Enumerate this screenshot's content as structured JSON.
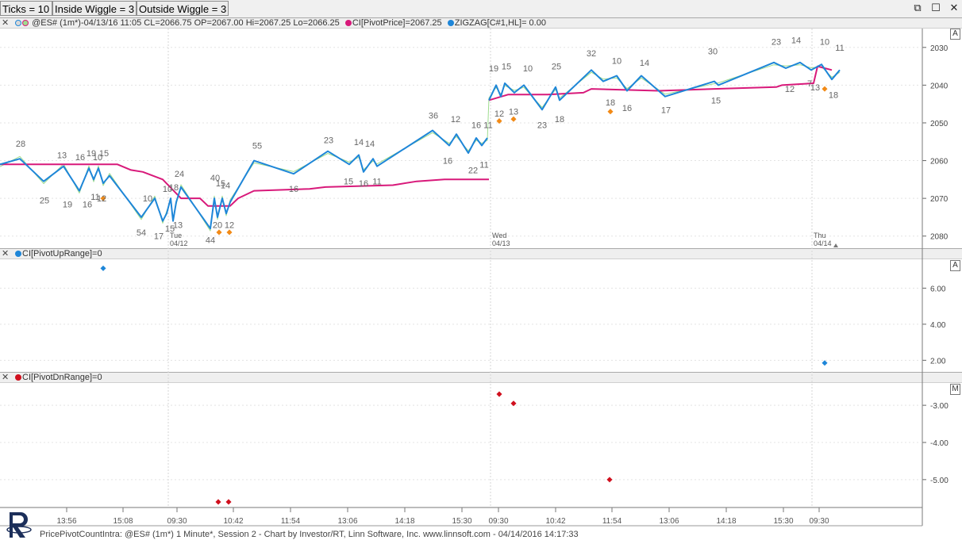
{
  "toolbar": {
    "ticks": "Ticks = 10",
    "inside_wiggle": "Inside Wiggle = 3",
    "outside_wiggle": "Outside Wiggle = 3"
  },
  "window_controls": {
    "restore": "⧉",
    "maximize": "☐",
    "close": "✕"
  },
  "price_pane": {
    "close_glyph": "✕",
    "symbol_info": "@ES# (1m*)-04/13/16 11:05 CL=2066.75 OP=2067.00 Hi=2067.25 Lo=2066.25",
    "pivot_price_label": "CI[PivotPrice]=2067.25",
    "zigzag_label": "ZIGZAG[C#1,HL]= 0.00",
    "scale_badge": "A",
    "y_ticks": [
      "2080",
      "2070",
      "2060",
      "2050",
      "2040",
      "2030"
    ],
    "day_labels": [
      {
        "day": "Tue",
        "date": "04/12"
      },
      {
        "day": "Wed",
        "date": "04/13"
      },
      {
        "day": "Thu",
        "date": "04/14"
      }
    ],
    "colors": {
      "zigzag": "#1e86d8",
      "pivot": "#d8197a",
      "price": "#9edc8e",
      "marker": "#f28a16"
    }
  },
  "pivot_up_pane": {
    "close_glyph": "✕",
    "label": "CI[PivotUpRange]=0",
    "scale_badge": "A",
    "y_ticks": [
      "6.00",
      "4.00",
      "2.00"
    ],
    "color": "#1e86d8"
  },
  "pivot_dn_pane": {
    "close_glyph": "✕",
    "label": "CI[PivotDnRange]=0",
    "scale_badge": "M",
    "y_ticks": [
      "-3.00",
      "-4.00",
      "-5.00"
    ],
    "color": "#d0101e"
  },
  "time_axis": [
    "13:56",
    "15:08",
    "09:30",
    "10:42",
    "11:54",
    "13:06",
    "14:18",
    "15:30",
    "09:30",
    "10:42",
    "11:54",
    "13:06",
    "14:18",
    "15:30",
    "09:30"
  ],
  "footer": "PricePivotCountIntra: @ES# (1m*) 1 Minute*, Session 2 - Chart by Investor/RT, Linn Software, Inc. www.linnsoft.com - 04/14/2016 14:17:33",
  "chart_data": [
    {
      "type": "line",
      "title": "@ES# (1m*)",
      "ylim": [
        2027,
        2085
      ],
      "ticks": [
        2030,
        2040,
        2050,
        2060,
        2070,
        2080
      ],
      "series": [
        {
          "name": "ZIGZAG[C#1,HL]",
          "points": [
            [
              0,
              2049
            ],
            [
              25,
              2050.5
            ],
            [
              55,
              2044.5
            ],
            [
              80,
              2048.5
            ],
            [
              100,
              2042
            ],
            [
              112,
              2048
            ],
            [
              118,
              2045
            ],
            [
              124,
              2048
            ],
            [
              130,
              2044
            ],
            [
              138,
              2046
            ],
            [
              178,
              2035
            ],
            [
              195,
              2040
            ],
            [
              205,
              2034
            ],
            [
              210,
              2036
            ],
            [
              215,
              2040
            ],
            [
              218,
              2034
            ],
            [
              222,
              2039
            ],
            [
              228,
              2043
            ],
            [
              265,
              2032
            ],
            [
              270,
              2040
            ],
            [
              274,
              2035
            ],
            [
              280,
              2040
            ],
            [
              285,
              2036
            ],
            [
              290,
              2039
            ],
            [
              320,
              2050
            ],
            [
              370,
              2046.5
            ],
            [
              413,
              2052.5
            ],
            [
              440,
              2049
            ],
            [
              452,
              2051.5
            ],
            [
              458,
              2047
            ],
            [
              470,
              2050.5
            ],
            [
              475,
              2048.5
            ],
            [
              545,
              2058
            ],
            [
              566,
              2054
            ],
            [
              575,
              2057
            ],
            [
              590,
              2052
            ],
            [
              600,
              2056
            ],
            [
              607,
              2054
            ],
            [
              614,
              2056
            ],
            [
              616,
              2066
            ],
            [
              625,
              2070
            ],
            [
              631,
              2067
            ],
            [
              636,
              2070.5
            ],
            [
              648,
              2068
            ],
            [
              660,
              2070
            ],
            [
              683,
              2063.5
            ],
            [
              700,
              2069.5
            ],
            [
              705,
              2066
            ],
            [
              745,
              2074
            ],
            [
              760,
              2071
            ],
            [
              777,
              2072.5
            ],
            [
              790,
              2068.5
            ],
            [
              808,
              2072.5
            ],
            [
              838,
              2067
            ],
            [
              900,
              2071
            ],
            [
              905,
              2070
            ],
            [
              975,
              2076
            ],
            [
              990,
              2074.5
            ],
            [
              1008,
              2076
            ],
            [
              1022,
              2074
            ],
            [
              1035,
              2075.5
            ],
            [
              1048,
              2071.5
            ],
            [
              1058,
              2074
            ]
          ]
        },
        {
          "name": "CI[PivotPrice]",
          "points": [
            [
              0,
              2049
            ],
            [
              148,
              2049
            ],
            [
              165,
              2047.5
            ],
            [
              180,
              2047
            ],
            [
              205,
              2045
            ],
            [
              228,
              2040
            ],
            [
              252,
              2040
            ],
            [
              262,
              2038
            ],
            [
              290,
              2038
            ],
            [
              300,
              2040
            ],
            [
              320,
              2042
            ],
            [
              390,
              2042.5
            ],
            [
              410,
              2043
            ],
            [
              495,
              2043.5
            ],
            [
              525,
              2044.5
            ],
            [
              560,
              2045
            ],
            [
              616,
              2045
            ],
            [
              616,
              2066
            ],
            [
              640,
              2067.5
            ],
            [
              690,
              2067.5
            ],
            [
              735,
              2068
            ],
            [
              745,
              2069
            ],
            [
              830,
              2068.5
            ],
            [
              900,
              2069
            ],
            [
              978,
              2069.5
            ],
            [
              985,
              2070
            ],
            [
              1025,
              2070.5
            ],
            [
              1030,
              2075
            ],
            [
              1048,
              2074
            ]
          ]
        }
      ],
      "point_labels": [
        {
          "t": "28",
          "x": 26,
          "y": 2054.5
        },
        {
          "t": "25",
          "x": 56,
          "y": 2039.5
        },
        {
          "t": "13",
          "x": 78,
          "y": 2051.5
        },
        {
          "t": "19",
          "x": 85,
          "y": 2038.5
        },
        {
          "t": "16",
          "x": 101,
          "y": 2051
        },
        {
          "t": "16",
          "x": 110,
          "y": 2038.5
        },
        {
          "t": "19",
          "x": 115,
          "y": 2052
        },
        {
          "t": "10",
          "x": 123,
          "y": 2051
        },
        {
          "t": "15",
          "x": 131,
          "y": 2052
        },
        {
          "t": "11",
          "x": 120,
          "y": 2040.5
        },
        {
          "t": "12",
          "x": 128,
          "y": 2040
        },
        {
          "t": "10",
          "x": 186,
          "y": 2040
        },
        {
          "t": "54",
          "x": 178,
          "y": 2031
        },
        {
          "t": "17",
          "x": 200,
          "y": 2030
        },
        {
          "t": "10",
          "x": 211,
          "y": 2042.5
        },
        {
          "t": "18",
          "x": 219,
          "y": 2043
        },
        {
          "t": "24",
          "x": 226,
          "y": 2046.5
        },
        {
          "t": "15",
          "x": 214,
          "y": 2032
        },
        {
          "t": "13",
          "x": 224,
          "y": 2033
        },
        {
          "t": "40",
          "x": 271,
          "y": 2045.5
        },
        {
          "t": "15",
          "x": 278,
          "y": 2044
        },
        {
          "t": "14",
          "x": 284,
          "y": 2043.5
        },
        {
          "t": "44",
          "x": 265,
          "y": 2029
        },
        {
          "t": "20",
          "x": 274,
          "y": 2033
        },
        {
          "t": "12",
          "x": 289,
          "y": 2033
        },
        {
          "t": "55",
          "x": 324,
          "y": 2054
        },
        {
          "t": "16",
          "x": 370,
          "y": 2042.5
        },
        {
          "t": "23",
          "x": 414,
          "y": 2055.5
        },
        {
          "t": "15",
          "x": 439,
          "y": 2044.5
        },
        {
          "t": "14",
          "x": 452,
          "y": 2055
        },
        {
          "t": "16",
          "x": 458,
          "y": 2044
        },
        {
          "t": "14",
          "x": 466,
          "y": 2054.5
        },
        {
          "t": "11",
          "x": 475,
          "y": 2044.5
        },
        {
          "t": "36",
          "x": 546,
          "y": 2062
        },
        {
          "t": "16",
          "x": 564,
          "y": 2050
        },
        {
          "t": "12",
          "x": 574,
          "y": 2061
        },
        {
          "t": "22",
          "x": 596,
          "y": 2047.5
        },
        {
          "t": "16",
          "x": 600,
          "y": 2059.5
        },
        {
          "t": "11",
          "x": 610,
          "y": 2049
        },
        {
          "t": "11",
          "x": 615,
          "y": 2059.5
        },
        {
          "t": "19",
          "x": 622,
          "y": 2074.5
        },
        {
          "t": "15",
          "x": 638,
          "y": 2075
        },
        {
          "t": "12",
          "x": 629,
          "y": 2062.5
        },
        {
          "t": "13",
          "x": 647,
          "y": 2063
        },
        {
          "t": "10",
          "x": 665,
          "y": 2074.5
        },
        {
          "t": "23",
          "x": 683,
          "y": 2059.5
        },
        {
          "t": "25",
          "x": 701,
          "y": 2075
        },
        {
          "t": "18",
          "x": 705,
          "y": 2061
        },
        {
          "t": "32",
          "x": 745,
          "y": 2078.5
        },
        {
          "t": "10",
          "x": 777,
          "y": 2076.5
        },
        {
          "t": "18",
          "x": 769,
          "y": 2065.5
        },
        {
          "t": "16",
          "x": 790,
          "y": 2064
        },
        {
          "t": "14",
          "x": 812,
          "y": 2076
        },
        {
          "t": "17",
          "x": 839,
          "y": 2063.5
        },
        {
          "t": "30",
          "x": 898,
          "y": 2079
        },
        {
          "t": "15",
          "x": 902,
          "y": 2066
        },
        {
          "t": "23",
          "x": 978,
          "y": 2081.5
        },
        {
          "t": "14",
          "x": 1003,
          "y": 2082
        },
        {
          "t": "12",
          "x": 995,
          "y": 2069
        },
        {
          "t": "10",
          "x": 1039,
          "y": 2081.5
        },
        {
          "t": "7",
          "x": 1020,
          "y": 2070.5
        },
        {
          "t": "13",
          "x": 1027,
          "y": 2069.5
        },
        {
          "t": "11",
          "x": 1058,
          "y": 2080
        },
        {
          "t": "18",
          "x": 1050,
          "y": 2067.5
        }
      ],
      "markers": [
        [
          130,
          2040
        ],
        [
          276,
          2031
        ],
        [
          289,
          2031
        ],
        [
          629,
          2060.5
        ],
        [
          647,
          2061
        ],
        [
          769,
          2063
        ],
        [
          1039,
          2069
        ]
      ]
    },
    {
      "type": "scatter",
      "title": "CI[PivotUpRange]",
      "ylim": [
        1.4,
        7.6
      ],
      "ticks": [
        6.0,
        4.0,
        2.0
      ],
      "points": [
        [
          130,
          7.1
        ],
        [
          1039,
          1.85
        ]
      ]
    },
    {
      "type": "scatter",
      "title": "CI[PivotDnRange]",
      "ylim": [
        -5.75,
        -2.4
      ],
      "ticks": [
        -3.0,
        -4.0,
        -5.0
      ],
      "points": [
        [
          629,
          -2.7
        ],
        [
          647,
          -2.95
        ],
        [
          768,
          -5.0
        ],
        [
          275,
          -5.6
        ],
        [
          288,
          -5.6
        ]
      ]
    }
  ]
}
